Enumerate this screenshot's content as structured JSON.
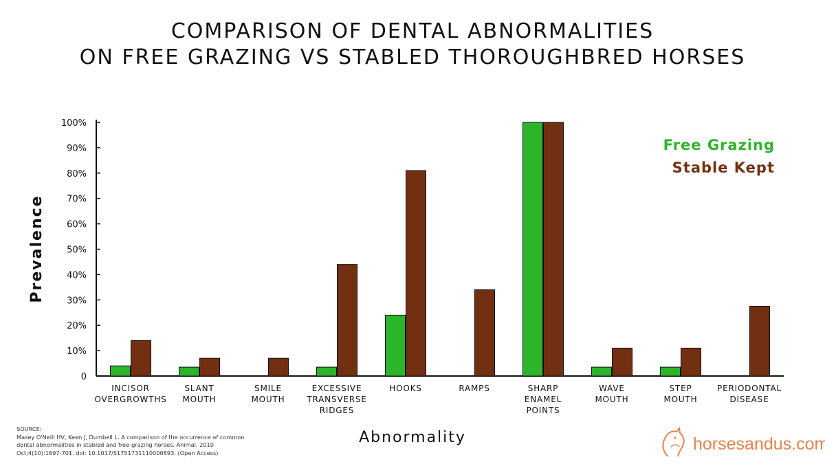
{
  "title_line1": "COMPARISON OF DENTAL ABNORMALITIES",
  "title_line2": "ON FREE GRAZING VS STABLED THOROUGHBRED HORSES",
  "source": {
    "label": "SOURCE:",
    "lines": [
      "Masey O'Neill HV, Keen J, Dumbell L. A comparison of the occurrence of common",
      "dental abnormalities in stabled and free-grazing horses. Animal. 2010",
      "Oct;4(10):1697-701. doi: 10.1017/S1751731110000893. (Open Access)"
    ]
  },
  "brand": {
    "text": "horsesandus.com",
    "logo": "horse-head-logo"
  },
  "colors": {
    "free_grazing": "#2db52a",
    "stable_kept": "#722f11",
    "axis": "#111111",
    "brand": "#e8834a"
  },
  "chart_data": {
    "type": "bar",
    "title": "COMPARISON OF DENTAL ABNORMALITIES ON FREE GRAZING VS STABLED THOROUGHBRED HORSES",
    "xlabel": "Abnormality",
    "ylabel": "Prevalence",
    "ylim": [
      0,
      100
    ],
    "yticks": [
      "0",
      "10%",
      "20%",
      "30%",
      "40%",
      "50%",
      "60%",
      "70%",
      "80%",
      "90%",
      "100%"
    ],
    "grid": false,
    "legend_position": "top-right",
    "categories": [
      [
        "INCISOR",
        "OVERGROWTHS"
      ],
      [
        "SLANT",
        "MOUTH"
      ],
      [
        "SMILE",
        "MOUTH"
      ],
      [
        "EXCESSIVE",
        "TRANSVERSE",
        "RIDGES"
      ],
      [
        "HOOKS"
      ],
      [
        "RAMPS"
      ],
      [
        "SHARP",
        "ENAMEL",
        "POINTS"
      ],
      [
        "WAVE",
        "MOUTH"
      ],
      [
        "STEP",
        "MOUTH"
      ],
      [
        "PERIODONTAL",
        "DISEASE"
      ]
    ],
    "series": [
      {
        "name": "Free Grazing",
        "color": "#2db52a",
        "values": [
          4,
          3.5,
          0,
          3.5,
          24,
          0,
          100,
          3.5,
          3.5,
          0
        ]
      },
      {
        "name": "Stable Kept",
        "color": "#722f11",
        "values": [
          14,
          7,
          7,
          44,
          81,
          34,
          100,
          11,
          11,
          27.5
        ]
      }
    ]
  }
}
